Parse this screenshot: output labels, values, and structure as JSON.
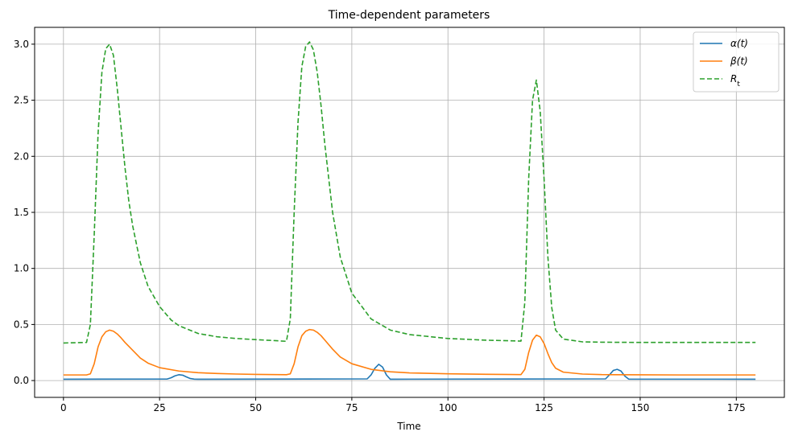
{
  "chart_data": {
    "type": "line",
    "title": "Time-dependent parameters",
    "xlabel": "Time",
    "ylabel": "",
    "xlim": [
      -7.5,
      187.5
    ],
    "ylim": [
      -0.15,
      3.15
    ],
    "xticks": [
      0,
      25,
      50,
      75,
      100,
      125,
      150,
      175
    ],
    "yticks": [
      0.0,
      0.5,
      1.0,
      1.5,
      2.0,
      2.5,
      3.0
    ],
    "xtick_labels": [
      "0",
      "25",
      "50",
      "75",
      "100",
      "125",
      "150",
      "175"
    ],
    "ytick_labels": [
      "0.0",
      "0.5",
      "1.0",
      "1.5",
      "2.0",
      "2.5",
      "3.0"
    ],
    "grid": true,
    "legend_position": "top-right",
    "series": [
      {
        "name": "α(t)",
        "color": "#1f77b4",
        "style": "solid",
        "x": [
          0,
          27,
          28,
          29,
          30,
          31,
          32,
          33,
          34,
          35,
          79,
          80,
          81,
          82,
          83,
          84,
          85,
          141,
          142,
          143,
          144,
          145,
          146,
          147,
          180
        ],
        "y": [
          0.012,
          0.014,
          0.025,
          0.042,
          0.052,
          0.048,
          0.032,
          0.018,
          0.013,
          0.012,
          0.015,
          0.05,
          0.11,
          0.145,
          0.12,
          0.05,
          0.012,
          0.015,
          0.05,
          0.09,
          0.1,
          0.085,
          0.04,
          0.013,
          0.012
        ]
      },
      {
        "name": "β(t)",
        "color": "#ff7f0e",
        "style": "solid",
        "x": [
          0,
          6,
          7,
          8,
          9,
          10,
          11,
          12,
          13,
          14,
          15,
          16,
          18,
          20,
          22,
          25,
          30,
          35,
          40,
          45,
          50,
          58,
          59,
          60,
          61,
          62,
          63,
          64,
          65,
          66,
          67,
          68,
          70,
          72,
          75,
          80,
          85,
          90,
          100,
          110,
          119,
          120,
          121,
          122,
          123,
          124,
          125,
          126,
          127,
          128,
          130,
          135,
          140,
          150,
          160,
          170,
          180
        ],
        "y": [
          0.05,
          0.05,
          0.06,
          0.15,
          0.3,
          0.39,
          0.435,
          0.45,
          0.44,
          0.415,
          0.38,
          0.34,
          0.27,
          0.2,
          0.155,
          0.115,
          0.085,
          0.07,
          0.063,
          0.058,
          0.055,
          0.052,
          0.06,
          0.15,
          0.3,
          0.4,
          0.44,
          0.455,
          0.45,
          0.43,
          0.4,
          0.36,
          0.28,
          0.21,
          0.15,
          0.1,
          0.078,
          0.068,
          0.06,
          0.056,
          0.053,
          0.1,
          0.25,
          0.36,
          0.405,
          0.39,
          0.33,
          0.24,
          0.16,
          0.11,
          0.075,
          0.058,
          0.053,
          0.051,
          0.05,
          0.05,
          0.05
        ]
      },
      {
        "name": "R_t",
        "color": "#2ca02c",
        "style": "dashed",
        "x": [
          0,
          6,
          7,
          8,
          9,
          10,
          11,
          12,
          13,
          14,
          15,
          16,
          17,
          18,
          20,
          22,
          25,
          28,
          30,
          35,
          40,
          45,
          50,
          55,
          58,
          59,
          60,
          61,
          62,
          63,
          64,
          65,
          66,
          67,
          68,
          69,
          70,
          72,
          75,
          80,
          85,
          90,
          100,
          110,
          119,
          120,
          121,
          122,
          123,
          124,
          125,
          126,
          127,
          128,
          130,
          135,
          140,
          150,
          160,
          170,
          180
        ],
        "y": [
          0.335,
          0.34,
          0.5,
          1.3,
          2.2,
          2.75,
          2.96,
          3.0,
          2.9,
          2.6,
          2.25,
          1.9,
          1.6,
          1.38,
          1.05,
          0.84,
          0.66,
          0.54,
          0.49,
          0.42,
          0.39,
          0.375,
          0.365,
          0.356,
          0.35,
          0.55,
          1.5,
          2.3,
          2.8,
          2.98,
          3.02,
          2.95,
          2.75,
          2.45,
          2.1,
          1.8,
          1.5,
          1.1,
          0.78,
          0.55,
          0.45,
          0.41,
          0.375,
          0.36,
          0.352,
          0.7,
          1.8,
          2.5,
          2.68,
          2.4,
          1.8,
          1.1,
          0.65,
          0.45,
          0.37,
          0.345,
          0.342,
          0.34,
          0.34,
          0.34,
          0.34
        ]
      }
    ]
  }
}
